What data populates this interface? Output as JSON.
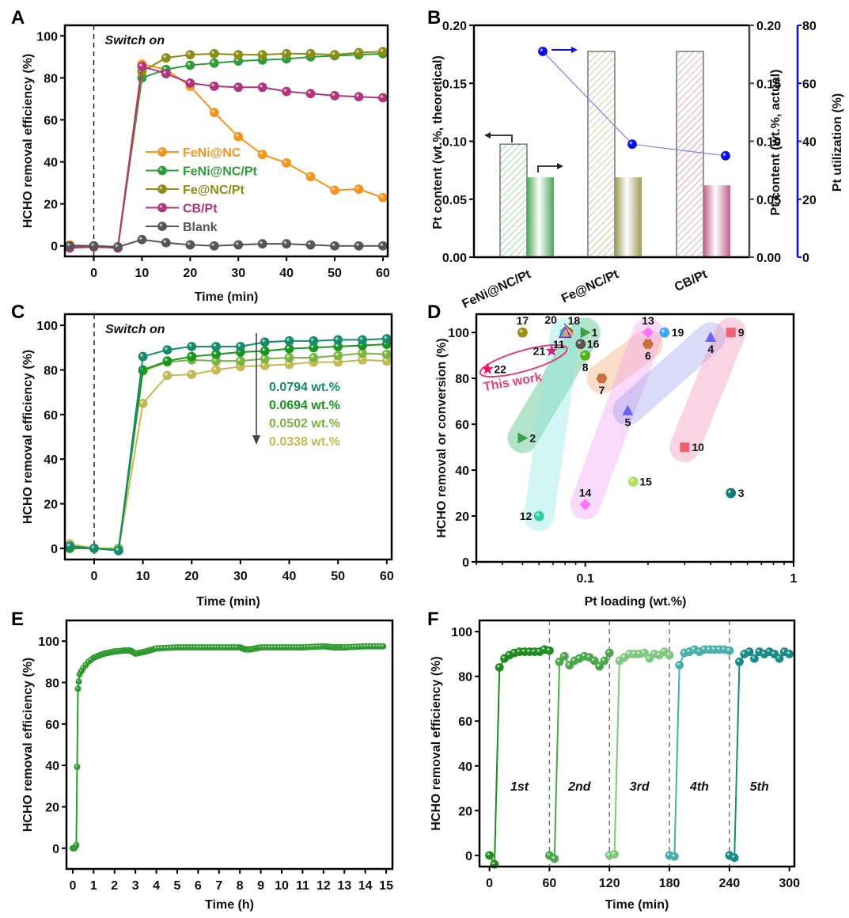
{
  "figure": {
    "panel_labels": [
      "A",
      "B",
      "C",
      "D",
      "E",
      "F"
    ]
  },
  "chart_data": [
    {
      "panel": "A",
      "type": "line",
      "title": "",
      "xlabel": "Time (min)",
      "ylabel": "HCHO removal efficiency (%)",
      "xlim": [
        -6,
        61
      ],
      "ylim": [
        -5,
        105
      ],
      "xticks": [
        0,
        10,
        20,
        30,
        40,
        50,
        60
      ],
      "yticks": [
        0,
        20,
        40,
        60,
        80,
        100
      ],
      "annotation": "Switch on",
      "vline_x": 0,
      "legend_position": "center-left",
      "x": [
        -5,
        0,
        5,
        10,
        15,
        20,
        25,
        30,
        35,
        40,
        45,
        50,
        55,
        60
      ],
      "series": [
        {
          "name": "FeNi@NC",
          "color": "#F7941D",
          "values": [
            0.5,
            0,
            -0.5,
            86.5,
            84,
            76,
            63.5,
            52,
            43.5,
            39.5,
            33,
            26.5,
            27,
            23
          ]
        },
        {
          "name": "FeNi@NC/Pt",
          "color": "#2E9B3C",
          "values": [
            0,
            0,
            -0.5,
            80,
            84,
            86,
            87,
            88,
            88.5,
            89,
            90,
            90.5,
            91,
            91.5
          ]
        },
        {
          "name": "Fe@NC/Pt",
          "color": "#8C8C16",
          "values": [
            0,
            0,
            -0.5,
            83,
            89.5,
            91,
            91.5,
            91,
            91,
            91.5,
            91.5,
            91,
            92,
            92.5
          ]
        },
        {
          "name": "CB/Pt",
          "color": "#B0347E",
          "values": [
            -1,
            -0.5,
            -1,
            85.5,
            82,
            77.5,
            76,
            75.5,
            75.5,
            73.5,
            72.5,
            71.5,
            71,
            70.5
          ]
        },
        {
          "name": "Blank",
          "color": "#555555",
          "values": [
            0,
            0,
            -0.5,
            3,
            1.5,
            0.5,
            0,
            0.5,
            1,
            1,
            0.5,
            0,
            0,
            0
          ]
        }
      ]
    },
    {
      "panel": "B",
      "type": "bar",
      "categories": [
        "FeNi@NC/Pt",
        "Fe@NC/Pt",
        "CB/Pt"
      ],
      "ylabel": "Pt content (wt.%, theoretical)",
      "ylabel_right": "Pt content (wt.%, actual)",
      "ylabel_right2": "Pt utilization (%)",
      "ylim": [
        0,
        0.2
      ],
      "ylim_right2": [
        0,
        80
      ],
      "yticks": [
        "0.00",
        "0.05",
        "0.10",
        "0.15",
        "0.20"
      ],
      "yticks_right2": [
        "0",
        "20",
        "40",
        "60",
        "80"
      ],
      "series": [
        {
          "name": "Theoretical",
          "style": "hatched",
          "axis": "left",
          "values": [
            0.0975,
            0.1775,
            0.1775
          ]
        },
        {
          "name": "Actual",
          "style": "gradient",
          "axis": "right",
          "values": [
            0.069,
            0.069,
            0.062
          ]
        },
        {
          "name": "Pt utilization",
          "style": "line-marker",
          "axis": "right2",
          "color": "#0A10E0",
          "values": [
            71,
            39,
            35
          ]
        }
      ],
      "bar_colors": [
        "#4CA65A",
        "#9A9A55",
        "#C0608A"
      ]
    },
    {
      "panel": "C",
      "type": "line",
      "xlabel": "Time (min)",
      "ylabel": "HCHO removal efficiency (%)",
      "xlim": [
        -6,
        61
      ],
      "ylim": [
        -5,
        105
      ],
      "xticks": [
        0,
        10,
        20,
        30,
        40,
        50,
        60
      ],
      "yticks": [
        0,
        20,
        40,
        60,
        80,
        100
      ],
      "annotation": "Switch on",
      "vline_x": 0,
      "legend_position": "right",
      "x": [
        -5,
        0,
        5,
        10,
        15,
        20,
        25,
        30,
        35,
        40,
        45,
        50,
        55,
        60
      ],
      "series": [
        {
          "name": "0.0794 wt.%",
          "color": "#168A6A",
          "values": [
            1,
            0,
            -1,
            86,
            89,
            90.5,
            90.5,
            90.5,
            92.5,
            93,
            93,
            93.5,
            93.5,
            94
          ]
        },
        {
          "name": "0.0694 wt.%",
          "color": "#18951E",
          "values": [
            0,
            0,
            -1,
            80,
            84,
            86,
            87,
            88,
            88.5,
            89.5,
            90,
            90.5,
            91,
            91.5
          ]
        },
        {
          "name": "0.0502 wt.%",
          "color": "#7CB342",
          "values": [
            0.5,
            0,
            0,
            79.5,
            83.5,
            84.5,
            84,
            84,
            85,
            85.5,
            85.5,
            86.5,
            87.5,
            87
          ]
        },
        {
          "name": "0.0338 wt.%",
          "color": "#C3B955",
          "values": [
            2,
            0,
            -1,
            65,
            77.5,
            78,
            80,
            81.5,
            82,
            82.5,
            83.5,
            83.5,
            84.5,
            84
          ]
        }
      ]
    },
    {
      "panel": "D",
      "type": "scatter",
      "xlabel": "Pt loading (wt.%)",
      "ylabel": "HCHO removal or conversion (%)",
      "xscale": "log",
      "xlim": [
        0.03,
        1
      ],
      "ylim": [
        0,
        108
      ],
      "xticks": [
        "0.1",
        "1"
      ],
      "yticks": [
        0,
        20,
        40,
        60,
        80,
        100
      ],
      "annotation": "This work",
      "points": [
        {
          "id": "1",
          "x": 0.1,
          "y": 100,
          "shape": "triangle-right",
          "color": "#3AA04A"
        },
        {
          "id": "2",
          "x": 0.05,
          "y": 54,
          "shape": "triangle-right",
          "color": "#3AA04A"
        },
        {
          "id": "3",
          "x": 0.5,
          "y": 30,
          "shape": "sphere",
          "color": "#127A78"
        },
        {
          "id": "4",
          "x": 0.4,
          "y": 98,
          "shape": "triangle-up",
          "color": "#6666EE"
        },
        {
          "id": "5",
          "x": 0.16,
          "y": 66,
          "shape": "triangle-up",
          "color": "#6666EE"
        },
        {
          "id": "6",
          "x": 0.2,
          "y": 95,
          "shape": "hexagon",
          "color": "#C8703C"
        },
        {
          "id": "7",
          "x": 0.12,
          "y": 80,
          "shape": "hexagon",
          "color": "#C8703C"
        },
        {
          "id": "8",
          "x": 0.1,
          "y": 90,
          "shape": "sphere",
          "color": "#55B020"
        },
        {
          "id": "9",
          "x": 0.5,
          "y": 100,
          "shape": "square",
          "color": "#F06070"
        },
        {
          "id": "10",
          "x": 0.3,
          "y": 50,
          "shape": "square",
          "color": "#F06070"
        },
        {
          "id": "11",
          "x": 0.08,
          "y": 100,
          "shape": "sphere",
          "color": "#30D0B0"
        },
        {
          "id": "12",
          "x": 0.06,
          "y": 20,
          "shape": "sphere",
          "color": "#30D0A0"
        },
        {
          "id": "13",
          "x": 0.2,
          "y": 100,
          "shape": "diamond",
          "color": "#FF70FF"
        },
        {
          "id": "14",
          "x": 0.1,
          "y": 25,
          "shape": "diamond",
          "color": "#FF70FF"
        },
        {
          "id": "15",
          "x": 0.17,
          "y": 35,
          "shape": "sphere",
          "color": "#B0E060"
        },
        {
          "id": "16",
          "x": 0.095,
          "y": 95,
          "shape": "sphere",
          "color": "#5A5048"
        },
        {
          "id": "17",
          "x": 0.05,
          "y": 100,
          "shape": "sphere",
          "color": "#A09010"
        },
        {
          "id": "18",
          "x": 0.083,
          "y": 100,
          "shape": "sphere",
          "color": "#E0A060"
        },
        {
          "id": "19",
          "x": 0.24,
          "y": 100,
          "shape": "sphere",
          "color": "#40A8F0"
        },
        {
          "id": "20",
          "x": 0.08,
          "y": 100,
          "shape": "triangle-open",
          "color": "#7030E0"
        },
        {
          "id": "21",
          "x": 0.069,
          "y": 92,
          "shape": "star",
          "color": "#D02080"
        },
        {
          "id": "22",
          "x": 0.034,
          "y": 84,
          "shape": "star",
          "color": "#F0106A"
        }
      ],
      "groups": [
        {
          "members": [
            "2",
            "1"
          ],
          "color": "#3CB878"
        },
        {
          "members": [
            "12",
            "11"
          ],
          "color": "#8CE8E0"
        },
        {
          "members": [
            "7",
            "6"
          ],
          "color": "#F4A870"
        },
        {
          "members": [
            "14",
            "13"
          ],
          "color": "#F0A0F4"
        },
        {
          "members": [
            "5",
            "4"
          ],
          "color": "#A0A0F0"
        },
        {
          "members": [
            "10",
            "9"
          ],
          "color": "#F490B8"
        }
      ]
    },
    {
      "panel": "E",
      "type": "line",
      "xlabel": "Time (h)",
      "ylabel": "HCHO removal efficiency (%)",
      "xlim": [
        -0.3,
        15.3
      ],
      "ylim": [
        -10,
        110
      ],
      "xticks": [
        0,
        1,
        2,
        3,
        4,
        5,
        6,
        7,
        8,
        9,
        10,
        11,
        12,
        13,
        14,
        15
      ],
      "yticks": [
        0,
        20,
        40,
        60,
        80,
        100
      ],
      "series": [
        {
          "name": "FeNi@NC/Pt",
          "color": "#2E9B2E",
          "x": [
            0,
            0.08,
            0.17,
            0.25,
            0.33,
            0.5,
            0.75,
            1,
            1.5,
            2,
            2.5,
            2.75,
            3,
            3.5,
            4,
            5,
            6,
            7,
            8,
            8.25,
            8.5,
            9,
            10,
            11,
            12,
            12.5,
            13,
            14,
            15
          ],
          "values": [
            0,
            0,
            1.5,
            77,
            84,
            87,
            90,
            92,
            94,
            95,
            95.5,
            95.5,
            94,
            95,
            96.5,
            97,
            97,
            97,
            97,
            96,
            96,
            97,
            97,
            97,
            97.5,
            97,
            97,
            97.5,
            97.5
          ]
        }
      ]
    },
    {
      "panel": "F",
      "type": "line",
      "xlabel": "Time (min)",
      "ylabel": "HCHO removal efficiency (%)",
      "xlim": [
        -10,
        305
      ],
      "ylim": [
        -5,
        105
      ],
      "xticks": [
        0,
        60,
        120,
        180,
        240,
        300
      ],
      "yticks": [
        0,
        20,
        40,
        60,
        80,
        100
      ],
      "vlines_x": [
        60,
        120,
        180,
        240
      ],
      "cycle_labels": [
        "1st",
        "2nd",
        "3rd",
        "4th",
        "5th"
      ],
      "series": [
        {
          "name": "1st",
          "color": "#1E8C1E",
          "x": [
            0,
            5,
            10,
            15,
            20,
            25,
            30,
            35,
            40,
            45,
            50,
            55,
            60
          ],
          "values": [
            0,
            -4,
            84,
            88,
            89.5,
            90.5,
            91,
            91,
            91,
            91,
            91,
            92,
            91.5
          ]
        },
        {
          "name": "2nd",
          "color": "#4AA84A",
          "x": [
            60,
            65,
            70,
            75,
            80,
            85,
            90,
            95,
            100,
            105,
            110,
            115,
            120
          ],
          "values": [
            0,
            -1.5,
            86.5,
            89,
            85,
            87,
            88,
            89,
            88.5,
            87,
            84.5,
            87,
            90.5
          ]
        },
        {
          "name": "3rd",
          "color": "#80C880",
          "x": [
            120,
            125,
            130,
            135,
            140,
            145,
            150,
            155,
            160,
            165,
            170,
            175,
            180
          ],
          "values": [
            0,
            0.5,
            87,
            88.5,
            90,
            90,
            90,
            90.5,
            88,
            90,
            89.5,
            91,
            89.5
          ]
        },
        {
          "name": "4th",
          "color": "#48B0A8",
          "x": [
            180,
            185,
            190,
            195,
            200,
            205,
            210,
            215,
            220,
            225,
            230,
            235,
            240
          ],
          "values": [
            0,
            -0.5,
            85,
            90.5,
            91,
            92,
            91,
            92,
            92,
            92,
            92,
            92,
            91.5
          ]
        },
        {
          "name": "5th",
          "color": "#168A86",
          "x": [
            240,
            245,
            250,
            255,
            260,
            265,
            270,
            275,
            280,
            285,
            290,
            295,
            300
          ],
          "values": [
            0,
            -1,
            86.5,
            90,
            91,
            88,
            91,
            90,
            91,
            90,
            88,
            91,
            90
          ]
        }
      ]
    }
  ]
}
